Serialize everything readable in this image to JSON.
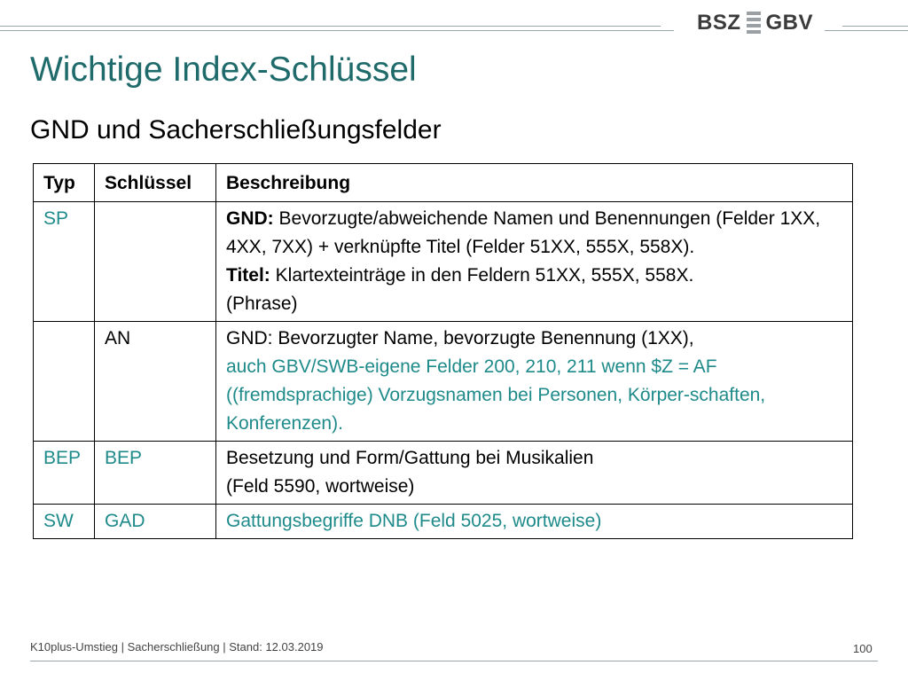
{
  "logo": {
    "left": "BSZ",
    "right": "GBV"
  },
  "title": "Wichtige Index-Schlüssel",
  "subtitle": "GND und Sacherschließungsfelder",
  "table": {
    "headers": [
      "Typ",
      "Schlüssel",
      "Beschreibung"
    ],
    "rows": [
      {
        "typ": "SP",
        "key": "",
        "desc_gnd_label": "GND:",
        "desc_gnd_text": "Bevorzugte/abweichende Namen und Benennungen (Felder 1XX, 4XX, 7XX) + verknüpfte Titel (Felder 51XX, 555X, 558X).",
        "desc_titel_label": "Titel:",
        "desc_titel_text": "Klartexteinträge in den Feldern 51XX, 555X, 558X.",
        "desc_phrase": "(Phrase)"
      },
      {
        "typ": "",
        "key": "AN",
        "desc_line1": "GND: Bevorzugter Name, bevorzugte Benennung (1XX),",
        "desc_teal": "auch GBV/SWB-eigene Felder 200, 210, 211 wenn $Z = AF ((fremdsprachige) Vorzugsnamen bei Personen, Körper-schaften, Konferenzen)."
      },
      {
        "typ": "BEP",
        "key": "BEP",
        "desc_line1": "Besetzung und Form/Gattung bei Musikalien",
        "desc_line2": "(Feld 5590, wortweise)"
      },
      {
        "typ": "SW",
        "key": "GAD",
        "desc": "Gattungsbegriffe DNB (Feld 5025, wortweise)"
      }
    ]
  },
  "footer": {
    "text": "K10plus-Umstieg | Sacherschließung | Stand: 12.03.2019",
    "page": "100"
  },
  "colors": {
    "title": "#1f6a6a",
    "accent": "#1f8a8a"
  }
}
